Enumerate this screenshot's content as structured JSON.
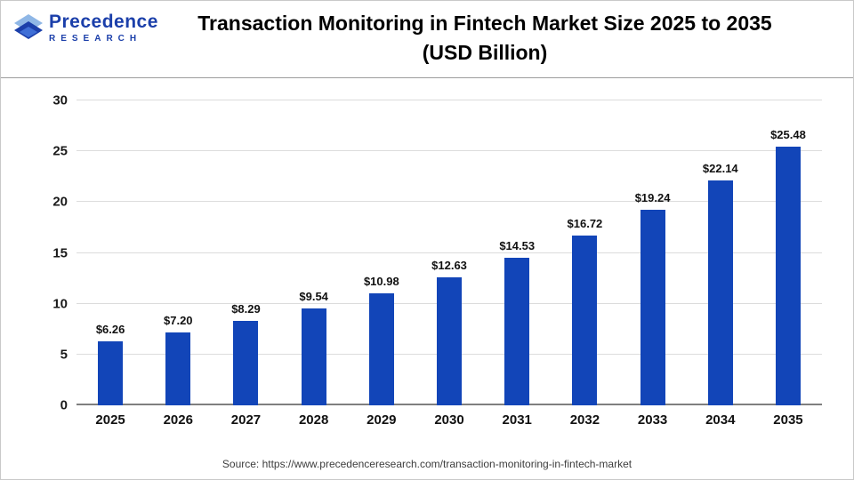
{
  "brand": {
    "line1": "Precedence",
    "line2": "RESEARCH"
  },
  "header": {
    "title_line1": "Transaction Monitoring in Fintech Market Size 2025 to 2035",
    "title_line2": "(USD Billion)"
  },
  "chart_data": {
    "type": "bar",
    "title": "Transaction Monitoring in Fintech Market Size 2025 to 2035 (USD Billion)",
    "categories": [
      "2025",
      "2026",
      "2027",
      "2028",
      "2029",
      "2030",
      "2031",
      "2032",
      "2033",
      "2034",
      "2035"
    ],
    "values": [
      6.26,
      7.2,
      8.29,
      9.54,
      10.98,
      12.63,
      14.53,
      16.72,
      19.24,
      22.14,
      25.48
    ],
    "value_prefix": "$",
    "xlabel": "",
    "ylabel": "",
    "ylim": [
      0,
      30
    ],
    "ytick_step": 5,
    "grid": true,
    "legend": "none",
    "bar_color": "#1245b8"
  },
  "colors": {
    "bar": "#1245b8",
    "grid": "#dcdcdc",
    "baseline": "#7f7f7f",
    "brand_blue": "#1b3faa",
    "title_text": "#000000"
  },
  "footer": {
    "source": "Source: https://www.precedenceresearch.com/transaction-monitoring-in-fintech-market"
  }
}
